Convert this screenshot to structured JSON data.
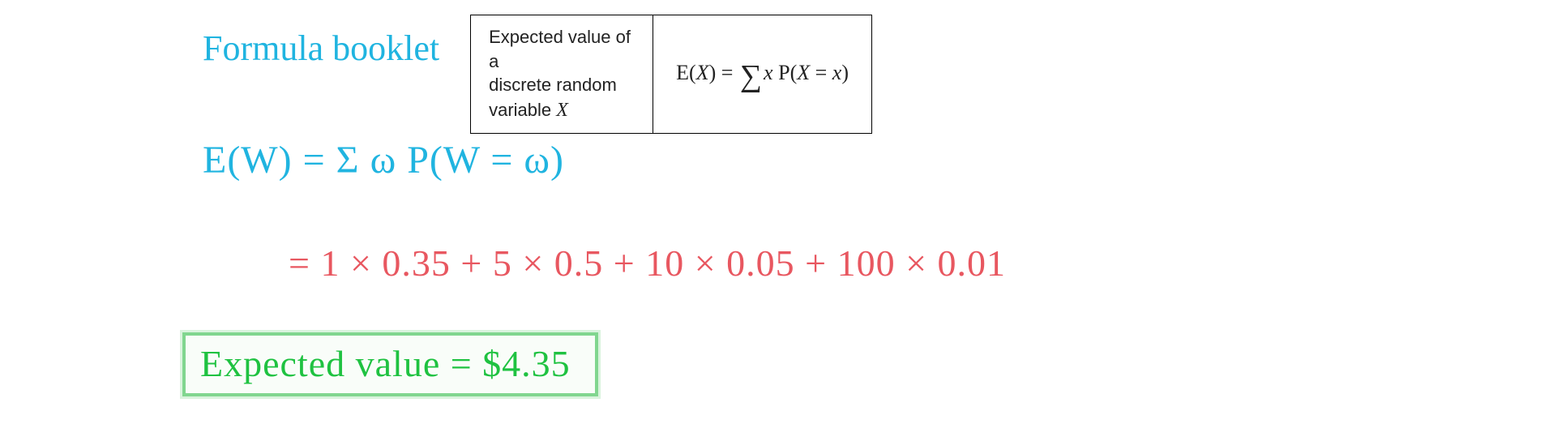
{
  "header": {
    "title": "Formula booklet",
    "table": {
      "desc_line1": "Expected value of a",
      "desc_line2": "discrete random",
      "desc_line3_prefix": "variable ",
      "desc_line3_var": "X",
      "formula_lhs_E": "E",
      "formula_lhs_open": "(",
      "formula_lhs_X": "X",
      "formula_lhs_close": ")",
      "formula_eq": " = ",
      "formula_sigma": "∑",
      "formula_x": "x",
      "formula_P": " P",
      "formula_popen": "(",
      "formula_Xeqx_X": "X",
      "formula_Xeqx_eq": " = ",
      "formula_Xeqx_x": "x",
      "formula_pclose": ")"
    }
  },
  "work": {
    "line1": "E(W) = Σ ω P(W = ω)",
    "line2": "= 1 × 0.35 + 5 × 0.5 + 10 × 0.05 + 100 × 0.01",
    "result": "Expected value = $4.35"
  },
  "colors": {
    "blue": "#20b4e0",
    "red": "#e85760",
    "green_text": "#1fc241",
    "green_border": "#81d68f",
    "black": "#000000",
    "bg": "#ffffff"
  }
}
